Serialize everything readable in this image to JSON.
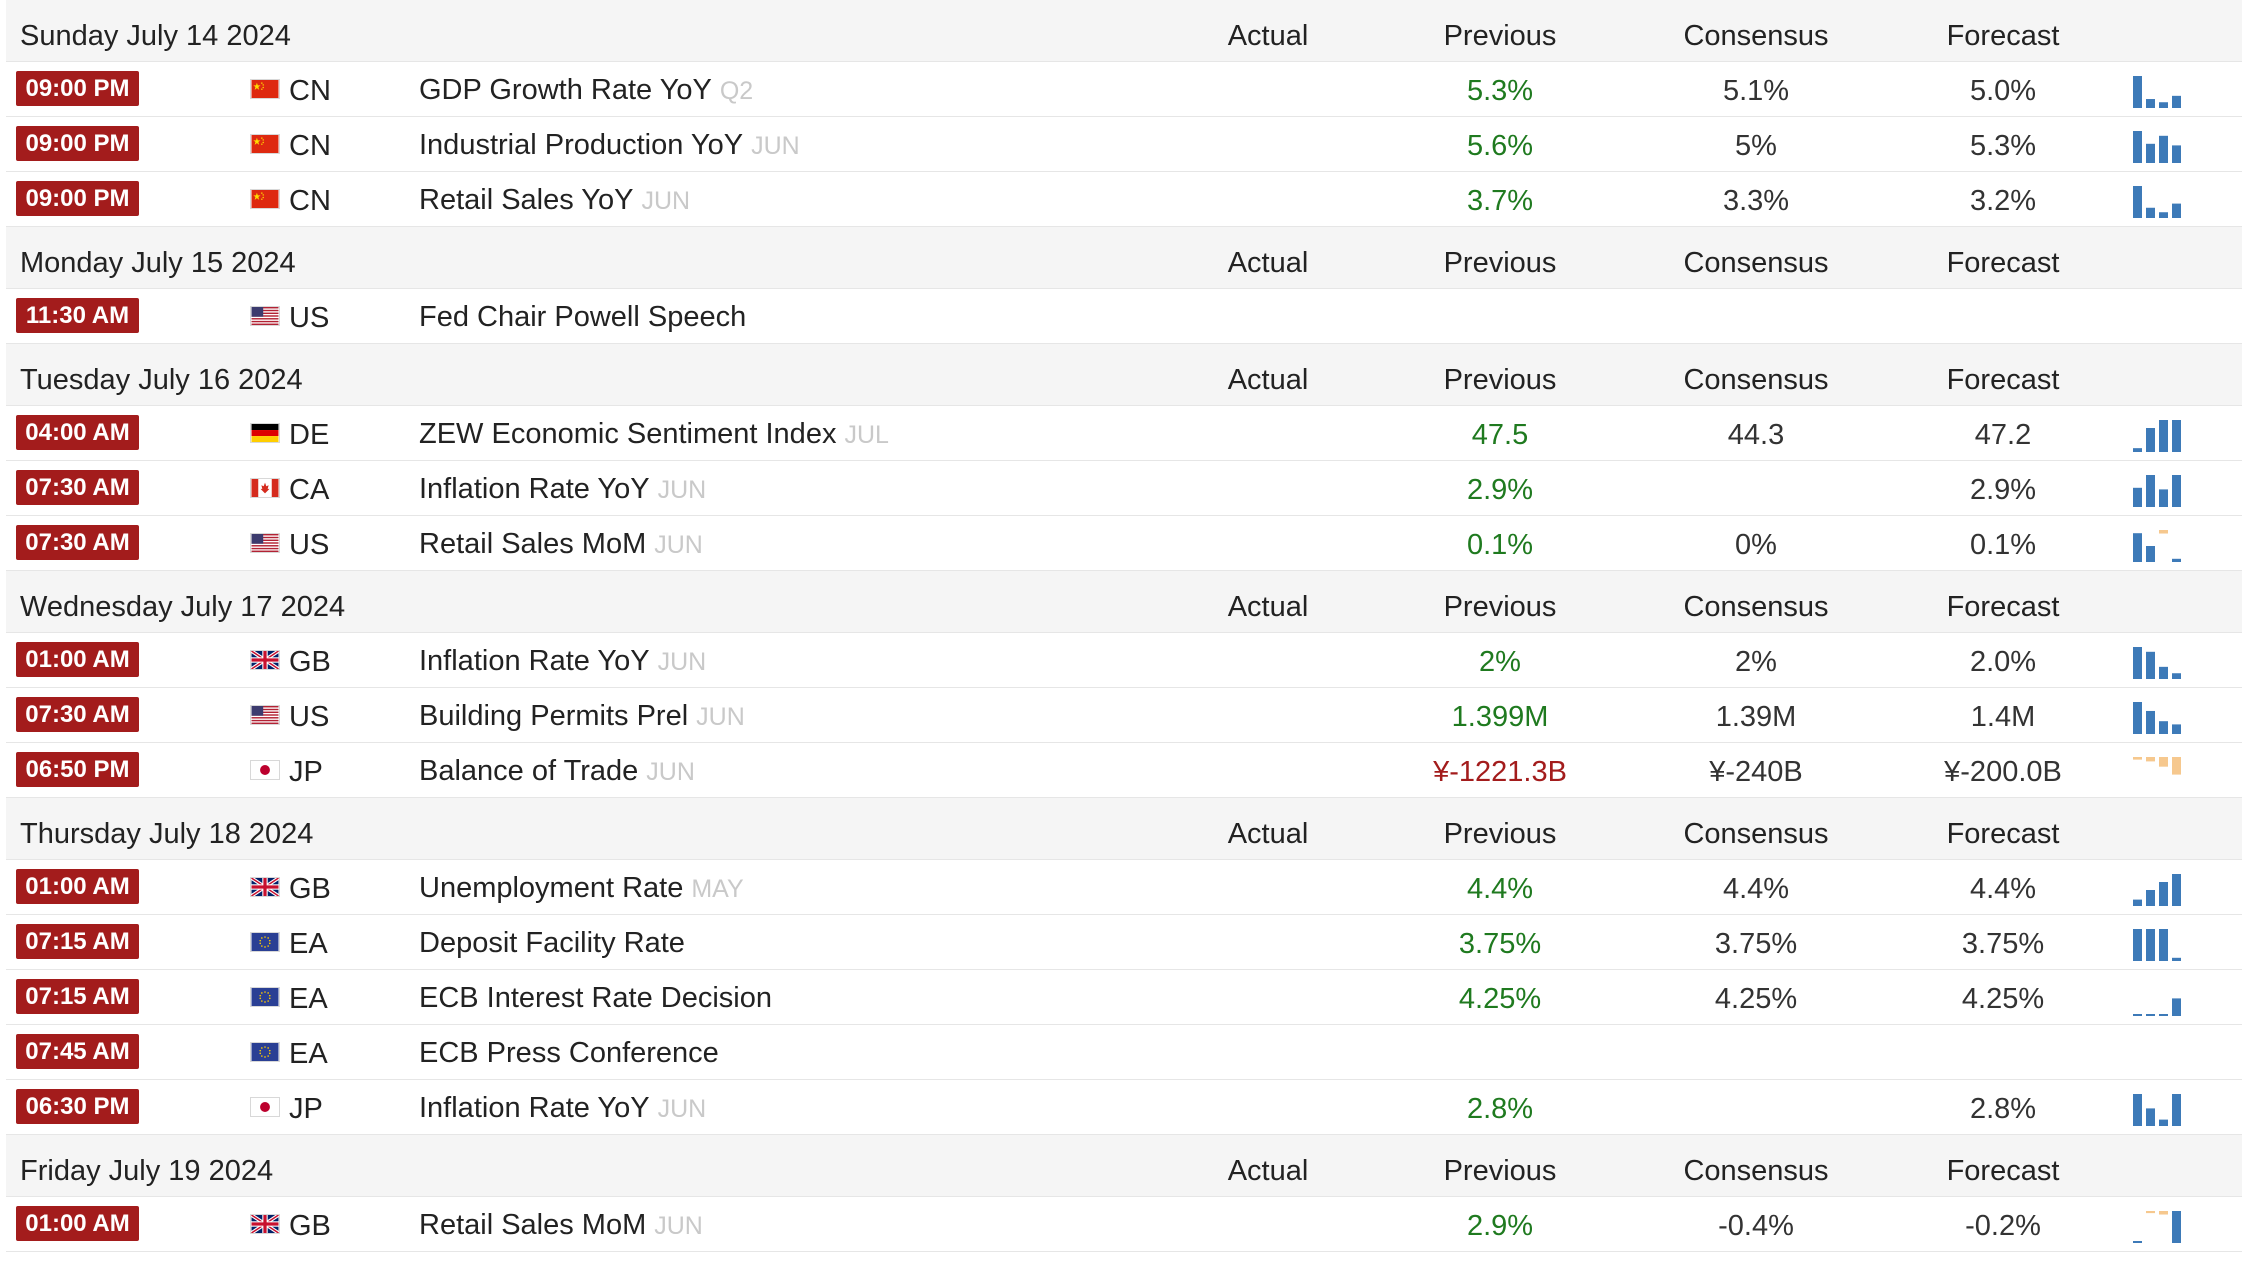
{
  "columns": {
    "actual": "Actual",
    "previous": "Previous",
    "consensus": "Consensus",
    "forecast": "Forecast"
  },
  "colors": {
    "time_bg": "#a31c1c",
    "positive": "#1f7a1f",
    "negative": "#a31c1c",
    "spark_blue": "#3d7ab8",
    "spark_orange": "#f6c88e"
  },
  "days": [
    {
      "date": "Sunday July 14 2024",
      "events": [
        {
          "time": "09:00 PM",
          "flag": "cn-flag-icon",
          "country": "CN",
          "event": "GDP Growth Rate YoY",
          "ref": "Q2",
          "actual": "",
          "previous": "5.3%",
          "prev_tone": "pos",
          "consensus": "5.1%",
          "forecast": "5.0%",
          "spark": [
            1.0,
            0.28,
            0.18,
            0.38
          ]
        },
        {
          "time": "09:00 PM",
          "flag": "cn-flag-icon",
          "country": "CN",
          "event": "Industrial Production YoY",
          "ref": "JUN",
          "actual": "",
          "previous": "5.6%",
          "prev_tone": "pos",
          "consensus": "5%",
          "forecast": "5.3%",
          "spark": [
            1.0,
            0.6,
            0.85,
            0.55
          ]
        },
        {
          "time": "09:00 PM",
          "flag": "cn-flag-icon",
          "country": "CN",
          "event": "Retail Sales YoY",
          "ref": "JUN",
          "actual": "",
          "previous": "3.7%",
          "prev_tone": "pos",
          "consensus": "3.3%",
          "forecast": "3.2%",
          "spark": [
            1.0,
            0.32,
            0.18,
            0.45
          ]
        }
      ]
    },
    {
      "date": "Monday July 15 2024",
      "events": [
        {
          "time": "11:30 AM",
          "flag": "us-flag-icon",
          "country": "US",
          "event": "Fed Chair Powell Speech",
          "ref": "",
          "actual": "",
          "previous": "",
          "prev_tone": "pos",
          "consensus": "",
          "forecast": "",
          "spark": []
        }
      ]
    },
    {
      "date": "Tuesday July 16 2024",
      "events": [
        {
          "time": "04:00 AM",
          "flag": "de-flag-icon",
          "country": "DE",
          "event": "ZEW Economic Sentiment Index",
          "ref": "JUL",
          "actual": "",
          "previous": "47.5",
          "prev_tone": "pos",
          "consensus": "44.3",
          "forecast": "47.2",
          "spark": [
            0.12,
            0.75,
            1.0,
            1.0
          ]
        },
        {
          "time": "07:30 AM",
          "flag": "ca-flag-icon",
          "country": "CA",
          "event": "Inflation Rate YoY",
          "ref": "JUN",
          "actual": "",
          "previous": "2.9%",
          "prev_tone": "pos",
          "consensus": "",
          "forecast": "2.9%",
          "spark": [
            0.6,
            1.0,
            0.55,
            1.0
          ]
        },
        {
          "time": "07:30 AM",
          "flag": "us-flag-icon",
          "country": "US",
          "event": "Retail Sales MoM",
          "ref": "JUN",
          "actual": "",
          "previous": "0.1%",
          "prev_tone": "pos",
          "consensus": "0%",
          "forecast": "0.1%",
          "spark": [
            0.9,
            0.5,
            -0.2,
            0.1
          ]
        }
      ]
    },
    {
      "date": "Wednesday July 17 2024",
      "events": [
        {
          "time": "01:00 AM",
          "flag": "gb-flag-icon",
          "country": "GB",
          "event": "Inflation Rate YoY",
          "ref": "JUN",
          "actual": "",
          "previous": "2%",
          "prev_tone": "pos",
          "consensus": "2%",
          "forecast": "2.0%",
          "spark": [
            1.0,
            0.85,
            0.38,
            0.18
          ]
        },
        {
          "time": "07:30 AM",
          "flag": "us-flag-icon",
          "country": "US",
          "event": "Building Permits Prel",
          "ref": "JUN",
          "actual": "",
          "previous": "1.399M",
          "prev_tone": "pos",
          "consensus": "1.39M",
          "forecast": "1.4M",
          "spark": [
            1.0,
            0.72,
            0.4,
            0.3
          ]
        },
        {
          "time": "06:50 PM",
          "flag": "jp-flag-icon",
          "country": "JP",
          "event": "Balance of Trade",
          "ref": "JUN",
          "actual": "",
          "previous": "¥-1221.3B",
          "prev_tone": "neg",
          "consensus": "¥-240B",
          "forecast": "¥-200.0B",
          "spark": [
            -0.15,
            -0.25,
            -0.55,
            -1.0
          ]
        }
      ]
    },
    {
      "date": "Thursday July 18 2024",
      "events": [
        {
          "time": "01:00 AM",
          "flag": "gb-flag-icon",
          "country": "GB",
          "event": "Unemployment Rate",
          "ref": "MAY",
          "actual": "",
          "previous": "4.4%",
          "prev_tone": "pos",
          "consensus": "4.4%",
          "forecast": "4.4%",
          "spark": [
            0.2,
            0.5,
            0.75,
            1.0
          ]
        },
        {
          "time": "07:15 AM",
          "flag": "eu-flag-icon",
          "country": "EA",
          "event": "Deposit Facility Rate",
          "ref": "",
          "actual": "",
          "previous": "3.75%",
          "prev_tone": "pos",
          "consensus": "3.75%",
          "forecast": "3.75%",
          "spark": [
            1.0,
            1.0,
            1.0,
            0.1
          ]
        },
        {
          "time": "07:15 AM",
          "flag": "eu-flag-icon",
          "country": "EA",
          "event": "ECB Interest Rate Decision",
          "ref": "",
          "actual": "",
          "previous": "4.25%",
          "prev_tone": "pos",
          "consensus": "4.25%",
          "forecast": "4.25%",
          "spark": [
            0.05,
            0.05,
            0.05,
            0.55
          ]
        },
        {
          "time": "07:45 AM",
          "flag": "eu-flag-icon",
          "country": "EA",
          "event": "ECB Press Conference",
          "ref": "",
          "actual": "",
          "previous": "",
          "prev_tone": "pos",
          "consensus": "",
          "forecast": "",
          "spark": []
        },
        {
          "time": "06:30 PM",
          "flag": "jp-flag-icon",
          "country": "JP",
          "event": "Inflation Rate YoY",
          "ref": "JUN",
          "actual": "",
          "previous": "2.8%",
          "prev_tone": "pos",
          "consensus": "",
          "forecast": "2.8%",
          "spark": [
            1.0,
            0.55,
            0.2,
            1.0
          ]
        }
      ]
    },
    {
      "date": "Friday July 19 2024",
      "events": [
        {
          "time": "01:00 AM",
          "flag": "gb-flag-icon",
          "country": "GB",
          "event": "Retail Sales MoM",
          "ref": "JUN",
          "actual": "",
          "previous": "2.9%",
          "prev_tone": "pos",
          "consensus": "-0.4%",
          "forecast": "-0.2%",
          "spark": [
            0.05,
            -0.12,
            -0.2,
            1.0
          ]
        }
      ]
    }
  ]
}
